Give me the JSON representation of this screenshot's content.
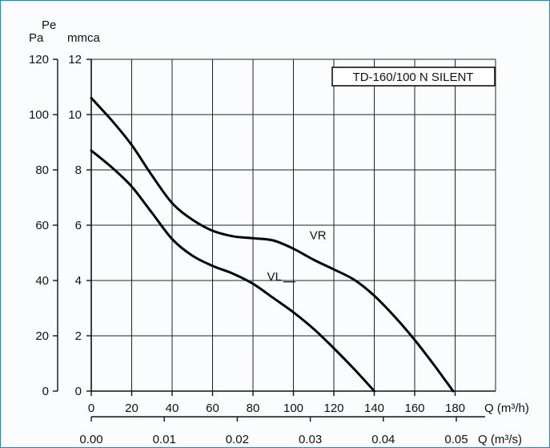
{
  "chart_data": {
    "type": "line",
    "model_label": "TD-160/100 N SILENT",
    "y_axis_pa": {
      "label": "Pa",
      "ticks": [
        0,
        20,
        40,
        60,
        80,
        100,
        120
      ],
      "range": [
        0,
        120
      ]
    },
    "y_axis_mmca": {
      "label_top": "Pe",
      "label": "mmca",
      "ticks": [
        0,
        2,
        4,
        6,
        8,
        10,
        12
      ],
      "range": [
        0,
        12
      ]
    },
    "x_axis_m3h": {
      "label": "Q (m³/h)",
      "ticks": [
        0,
        20,
        40,
        60,
        80,
        100,
        120,
        140,
        160,
        180
      ],
      "range": [
        0,
        200
      ]
    },
    "x_axis_m3s": {
      "label": "Q (m³/s)",
      "ticks": [
        "0.00",
        "0.01",
        "0.02",
        "0.03",
        "0.04",
        "0.05"
      ],
      "tick_values": [
        0.0,
        0.01,
        0.02,
        0.03,
        0.04,
        0.05
      ]
    },
    "grid": true,
    "series": [
      {
        "name": "VR",
        "x": [
          0,
          10,
          20,
          30,
          40,
          50,
          60,
          70,
          80,
          90,
          100,
          110,
          120,
          130,
          140,
          150,
          160,
          170,
          179
        ],
        "y": [
          106,
          98,
          89,
          78,
          68,
          62,
          58,
          56,
          55.3,
          54.5,
          51.5,
          47.5,
          44,
          40.3,
          34.5,
          27,
          18.5,
          9,
          0
        ]
      },
      {
        "name": "VL",
        "x": [
          0,
          10,
          20,
          30,
          40,
          50,
          60,
          70,
          80,
          90,
          100,
          110,
          120,
          130,
          140
        ],
        "y": [
          87,
          81,
          74,
          64.5,
          55,
          49,
          45.3,
          42.5,
          38.8,
          33.7,
          28.5,
          22.5,
          15.5,
          8,
          0
        ]
      }
    ]
  }
}
